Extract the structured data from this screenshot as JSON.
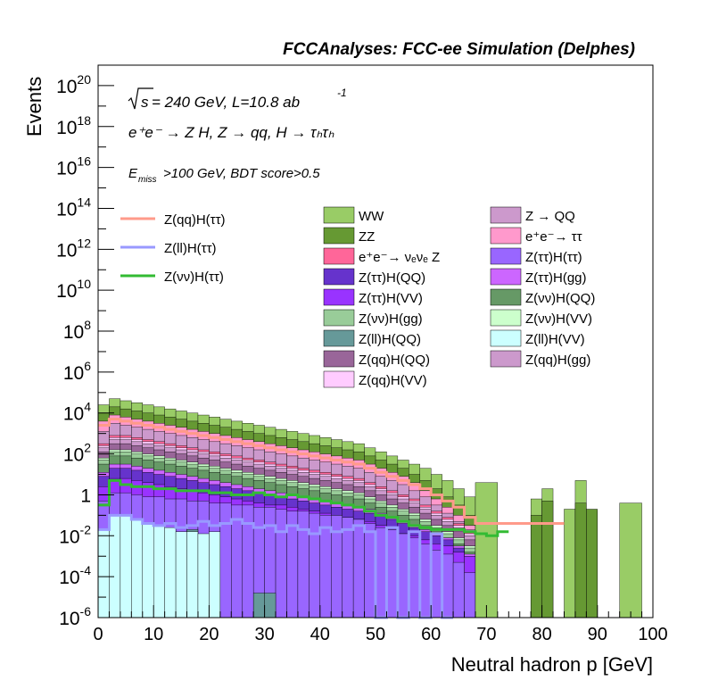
{
  "chart_data": {
    "type": "histogram-stacked",
    "title": "FCCAnalyses: FCC-ee Simulation (Delphes)",
    "xlabel": "Neutral hadron p [GeV]",
    "ylabel": "Events",
    "xlim": [
      0,
      100
    ],
    "ylim": [
      1e-06,
      1e+21
    ],
    "y_log": true,
    "grid": false,
    "x_ticks": [
      "0",
      "10",
      "20",
      "30",
      "40",
      "50",
      "60",
      "70",
      "80",
      "90",
      "100"
    ],
    "y_ticks": [
      {
        "base": "10",
        "exp": "-6"
      },
      {
        "base": "10",
        "exp": "-4"
      },
      {
        "base": "10",
        "exp": "-2"
      },
      {
        "base": "1",
        "exp": ""
      },
      {
        "base": "10",
        "exp": "2"
      },
      {
        "base": "10",
        "exp": "4"
      },
      {
        "base": "10",
        "exp": "6"
      },
      {
        "base": "10",
        "exp": "8"
      },
      {
        "base": "10",
        "exp": "10"
      },
      {
        "base": "10",
        "exp": "12"
      },
      {
        "base": "10",
        "exp": "14"
      },
      {
        "base": "10",
        "exp": "16"
      },
      {
        "base": "10",
        "exp": "18"
      },
      {
        "base": "10",
        "exp": "20"
      }
    ],
    "annotations": {
      "energy_sqrt": "s",
      "energy_rest": " = 240 GeV, L=10.8 ab",
      "energy_exp": "-1",
      "process": "e⁺e⁻ → Z H, Z → qq, H → τₕτₕ",
      "cut_e": "E",
      "cut_sub": "miss",
      "cut_rest": ">100 GeV, BDT score>0.5"
    },
    "bin_edges_start": 0,
    "bin_width": 2,
    "signal_legend": [
      {
        "label": "Z(qq)H(ττ)",
        "color": "#ff9a8a"
      },
      {
        "label": "Z(ll)H(ττ)",
        "color": "#9999ff"
      },
      {
        "label": "Z(νν)H(ττ)",
        "color": "#33bb33"
      }
    ],
    "backgrounds_legend": [
      {
        "label": "WW",
        "color": "#99cc66"
      },
      {
        "label": "Z → QQ",
        "color": "#cc99cc"
      },
      {
        "label": "ZZ",
        "color": "#669933"
      },
      {
        "label": "e⁺e⁻→ ττ",
        "color": "#ff99cc"
      },
      {
        "label": "e⁺e⁻→ νₑνₑ Z",
        "color": "#ff6699"
      },
      {
        "label": "Z(ττ)H(ττ)",
        "color": "#9966ff"
      },
      {
        "label": "Z(ττ)H(QQ)",
        "color": "#6633cc"
      },
      {
        "label": "Z(ττ)H(gg)",
        "color": "#cc66ff"
      },
      {
        "label": "Z(ττ)H(VV)",
        "color": "#9933ff"
      },
      {
        "label": "Z(νν)H(QQ)",
        "color": "#669966"
      },
      {
        "label": "Z(νν)H(gg)",
        "color": "#99cc99"
      },
      {
        "label": "Z(νν)H(VV)",
        "color": "#ccffcc"
      },
      {
        "label": "Z(ll)H(QQ)",
        "color": "#669999"
      },
      {
        "label": "Z(ll)H(VV)",
        "color": "#ccffff"
      },
      {
        "label": "Z(qq)H(QQ)",
        "color": "#996699"
      },
      {
        "label": "Z(qq)H(gg)",
        "color": "#cc99cc"
      },
      {
        "label": "Z(qq)H(VV)",
        "color": "#ffccff"
      }
    ],
    "stack_order_bottom_to_top": [
      "Z(ll)H(VV)",
      "Z(ll)H(QQ)",
      "Z(ττ)H(ττ)",
      "Z(ττ)H(VV)",
      "Z(ττ)H(QQ)",
      "Z(ττ)H(gg)",
      "Z(νν)H(QQ)",
      "Z(νν)H(gg)",
      "Z(νν)H(VV)",
      "Z(qq)H(QQ)",
      "Z(qq)H(gg)",
      "Z(qq)H(VV)",
      "e⁺e⁻→ νₑνₑ Z",
      "Z → QQ",
      "e⁺e⁻→ ττ",
      "ZZ",
      "WW"
    ],
    "stack_layers": [
      {
        "name": "Z(ll)H(VV)",
        "color": "#ccffff",
        "log10": [
          -1.7,
          -1.0,
          -1.0,
          -1.2,
          -1.4,
          -1.5,
          -1.6,
          -1.8,
          -1.8,
          -1.9,
          -1.8
        ]
      },
      {
        "name": "Z(ll)H(QQ)",
        "color": "#669999",
        "log10": [
          -5.0,
          -5.0,
          -5.0,
          -5.0,
          -5.0,
          -1.8,
          -6.0,
          -1.8,
          -1.7,
          -6.0,
          -6.0,
          -6.0,
          -6.0,
          -6.0,
          -4.8,
          -4.8,
          -6.0
        ]
      },
      {
        "name": "Z(ττ)H(ττ)",
        "color": "#9966ff",
        "log10": [
          -0.3,
          0.1,
          0.1,
          0.0,
          -0.1,
          -0.1,
          -0.2,
          -0.2,
          -0.3,
          -0.3,
          -0.4,
          -0.4,
          -0.5,
          -0.5,
          -0.6,
          -0.6,
          -0.7,
          -0.8,
          -0.8,
          -0.9,
          -1.0,
          -1.0,
          -1.1,
          -1.2,
          -1.4,
          -1.6,
          -1.7,
          -1.9,
          -2.1,
          -2.4,
          -2.7,
          -2.9,
          -3.3,
          -3.8
        ]
      },
      {
        "name": "Z(ττ)H(VV)",
        "color": "#9933ff",
        "log10": [
          0.4,
          0.8,
          0.8,
          0.7,
          0.6,
          0.5,
          0.4,
          0.3,
          0.2,
          0.1,
          0.0,
          -0.1,
          -0.2,
          -0.3,
          -0.4,
          -0.5,
          -0.5,
          -0.6,
          -0.7,
          -0.8,
          -0.9,
          -1.0,
          -1.1,
          -1.2,
          -1.3,
          -1.5,
          -1.7,
          -1.9,
          -2.0,
          -2.2,
          -2.4,
          -2.5,
          -2.8,
          -3.0
        ]
      },
      {
        "name": "Z(ττ)H(QQ)",
        "color": "#6633cc",
        "log10": [
          0.9,
          1.3,
          1.3,
          1.2,
          1.1,
          1.0,
          0.9,
          0.8,
          0.7,
          0.6,
          0.5,
          0.4,
          0.3,
          0.2,
          0.1,
          0.0,
          -0.1,
          -0.2,
          -0.3,
          -0.4,
          -0.5,
          -0.6,
          -0.7,
          -0.8,
          -0.9,
          -1.0,
          -1.2,
          -1.4,
          -1.6,
          -1.8,
          -2.0,
          -2.2,
          -2.6,
          -3.0
        ]
      },
      {
        "name": "Z(ττ)H(gg)",
        "color": "#cc66ff",
        "log10": [
          1.1,
          1.5,
          1.5,
          1.4,
          1.3,
          1.2,
          1.1,
          1.0,
          0.9,
          0.8,
          0.7,
          0.6,
          0.5,
          0.4,
          0.3,
          0.2,
          0.1,
          0.0,
          -0.1,
          -0.2,
          -0.3,
          -0.4,
          -0.5,
          -0.6,
          -0.7,
          -0.9,
          -1.1,
          -1.3,
          -1.5,
          -1.7,
          -1.9,
          -2.1,
          -2.5,
          -2.9
        ]
      },
      {
        "name": "Z(νν)H(QQ)",
        "color": "#669966",
        "log10": [
          1.5,
          1.9,
          1.9,
          1.8,
          1.7,
          1.6,
          1.5,
          1.4,
          1.3,
          1.2,
          1.1,
          1.0,
          0.9,
          0.8,
          0.7,
          0.6,
          0.5,
          0.4,
          0.3,
          0.2,
          0.1,
          0.0,
          -0.1,
          -0.2,
          -0.4,
          -0.6,
          -0.8,
          -1.0,
          -1.2,
          -1.5,
          -1.8,
          -2.1,
          -2.4,
          -2.8
        ]
      },
      {
        "name": "Z(νν)H(gg)",
        "color": "#99cc99",
        "log10": [
          1.7,
          2.1,
          2.1,
          2.0,
          1.9,
          1.8,
          1.7,
          1.6,
          1.5,
          1.4,
          1.3,
          1.2,
          1.1,
          1.0,
          0.9,
          0.8,
          0.7,
          0.6,
          0.5,
          0.4,
          0.3,
          0.2,
          0.1,
          0.0,
          -0.2,
          -0.4,
          -0.6,
          -0.8,
          -1.0,
          -1.3,
          -1.6,
          -1.9,
          -2.2,
          -2.6
        ]
      },
      {
        "name": "Z(νν)H(VV)",
        "color": "#ccffcc",
        "log10": [
          1.8,
          2.2,
          2.2,
          2.1,
          2.0,
          1.9,
          1.8,
          1.7,
          1.6,
          1.5,
          1.4,
          1.3,
          1.2,
          1.1,
          1.0,
          0.9,
          0.8,
          0.7,
          0.6,
          0.5,
          0.4,
          0.3,
          0.2,
          0.1,
          -0.1,
          -0.3,
          -0.5,
          -0.7,
          -0.9,
          -1.2,
          -1.5,
          -1.8,
          -2.1,
          -2.5
        ]
      },
      {
        "name": "Z(qq)H(QQ)",
        "color": "#996699",
        "log10": [
          2.1,
          2.5,
          2.5,
          2.4,
          2.3,
          2.2,
          2.1,
          2.0,
          1.9,
          1.8,
          1.7,
          1.6,
          1.5,
          1.4,
          1.3,
          1.2,
          1.1,
          1.0,
          0.9,
          0.8,
          0.7,
          0.6,
          0.5,
          0.4,
          0.2,
          0.0,
          -0.2,
          -0.4,
          -0.6,
          -0.9,
          -1.2,
          -1.5,
          -1.8,
          -2.2
        ]
      },
      {
        "name": "Z(qq)H(gg)",
        "color": "#cc99cc",
        "log10": [
          2.3,
          2.7,
          2.7,
          2.6,
          2.5,
          2.4,
          2.3,
          2.2,
          2.1,
          2.0,
          1.9,
          1.8,
          1.7,
          1.6,
          1.5,
          1.4,
          1.3,
          1.2,
          1.1,
          1.0,
          0.9,
          0.8,
          0.7,
          0.6,
          0.4,
          0.2,
          0.0,
          -0.2,
          -0.4,
          -0.7,
          -1.0,
          -1.3,
          -1.6,
          -2.0
        ]
      },
      {
        "name": "Z(qq)H(VV)",
        "color": "#ffccff",
        "log10": [
          2.4,
          2.8,
          2.8,
          2.7,
          2.6,
          2.5,
          2.4,
          2.3,
          2.2,
          2.1,
          2.0,
          1.9,
          1.8,
          1.7,
          1.6,
          1.5,
          1.4,
          1.3,
          1.2,
          1.1,
          1.0,
          0.9,
          0.8,
          0.7,
          0.5,
          0.3,
          0.1,
          -0.1,
          -0.3,
          -0.6,
          -0.9,
          -1.2,
          -1.5,
          -1.9
        ]
      },
      {
        "name": "e⁺e⁻→ νₑνₑ Z",
        "color": "#ff6699",
        "log10": [
          2.5,
          2.9,
          2.9,
          2.8,
          2.7,
          2.6,
          2.5,
          2.4,
          2.3,
          2.2,
          2.1,
          2.0,
          1.9,
          1.8,
          1.7,
          1.6,
          1.5,
          1.4,
          1.3,
          1.2,
          1.1,
          1.0,
          0.9,
          0.8,
          0.6,
          0.4,
          0.2,
          0.0,
          -0.2,
          -0.5,
          -0.8,
          -1.1,
          -1.4,
          -1.8
        ]
      },
      {
        "name": "Z → QQ",
        "color": "#cc99cc",
        "log10": [
          3.1,
          3.5,
          3.4,
          3.3,
          3.2,
          3.1,
          3.0,
          2.9,
          2.8,
          2.7,
          2.6,
          2.5,
          2.4,
          2.3,
          2.2,
          2.1,
          2.0,
          1.9,
          1.8,
          1.7,
          1.6,
          1.5,
          1.4,
          1.3,
          1.1,
          0.9,
          0.7,
          0.5,
          0.2,
          -0.1,
          -0.5,
          -0.9,
          -1.3,
          -1.7
        ]
      },
      {
        "name": "e⁺e⁻→ ττ",
        "color": "#ff99cc",
        "log10": [
          3.6,
          3.9,
          3.8,
          3.7,
          3.6,
          3.5,
          3.4,
          3.3,
          3.2,
          3.1,
          3.0,
          2.9,
          2.8,
          2.7,
          2.6,
          2.5,
          2.4,
          2.3,
          2.2,
          2.1,
          2.0,
          1.9,
          1.8,
          1.7,
          1.5,
          1.3,
          1.1,
          0.9,
          0.6,
          0.2,
          -0.2,
          -0.6,
          -1.0,
          -1.5
        ]
      },
      {
        "name": "ZZ",
        "color": "#669933",
        "log10": [
          4.0,
          4.3,
          4.2,
          4.1,
          4.0,
          3.9,
          3.8,
          3.7,
          3.6,
          3.5,
          3.4,
          3.3,
          3.2,
          3.1,
          3.0,
          2.9,
          2.8,
          2.7,
          2.6,
          2.5,
          2.4,
          2.3,
          2.2,
          2.1,
          1.9,
          1.7,
          1.5,
          1.3,
          1.0,
          0.7,
          0.3,
          -0.1,
          -0.5,
          -1.0
        ]
      },
      {
        "name": "WW",
        "color": "#99cc66",
        "log10": [
          4.4,
          4.7,
          4.6,
          4.5,
          4.4,
          4.3,
          4.2,
          4.1,
          4.0,
          3.9,
          3.8,
          3.7,
          3.6,
          3.5,
          3.4,
          3.3,
          3.2,
          3.1,
          3.0,
          2.9,
          2.8,
          2.7,
          2.6,
          2.5,
          2.3,
          2.1,
          1.9,
          1.7,
          1.5,
          1.3,
          1.0,
          0.7,
          0.3,
          -0.1
        ]
      }
    ],
    "ww_tail_bins": [
      {
        "x0": 68,
        "x1": 72,
        "log10": 0.6
      },
      {
        "x0": 78,
        "x1": 80,
        "log10": -0.2
      },
      {
        "x0": 80,
        "x1": 82,
        "log10": 0.3
      },
      {
        "x0": 84,
        "x1": 86,
        "log10": -0.7
      },
      {
        "x0": 86,
        "x1": 88,
        "log10": 0.7
      },
      {
        "x0": 88,
        "x1": 90,
        "log10": -0.8
      },
      {
        "x0": 94,
        "x1": 98,
        "log10": -0.4
      }
    ],
    "zz_tail_bins": [
      {
        "x0": 78,
        "x1": 80,
        "log10": -1.0
      },
      {
        "x0": 80,
        "x1": 82,
        "log10": -0.3
      },
      {
        "x0": 86,
        "x1": 88,
        "log10": -0.4
      },
      {
        "x0": 88,
        "x1": 90,
        "log10": -0.7
      }
    ],
    "signal_lines": [
      {
        "name": "Z(qq)H(ττ)",
        "color": "#ff9a8a",
        "log10": [
          3.4,
          3.7,
          3.6,
          3.5,
          3.4,
          3.3,
          3.2,
          3.1,
          3.0,
          2.9,
          2.8,
          2.7,
          2.6,
          2.5,
          2.4,
          2.3,
          2.2,
          2.1,
          2.0,
          1.9,
          1.8,
          1.7,
          1.6,
          1.5,
          1.3,
          1.1,
          0.9,
          0.7,
          0.5,
          0.3,
          0.0,
          -0.3,
          -0.6,
          -1.1,
          -1.4,
          -1.4,
          -1.4,
          -1.4,
          -1.4,
          -1.4,
          -1.4,
          -1.4
        ]
      },
      {
        "name": "Z(νν)H(ττ)",
        "color": "#33bb33",
        "log10": [
          -0.5,
          0.7,
          0.5,
          0.4,
          0.4,
          0.3,
          0.3,
          0.2,
          0.2,
          0.2,
          0.1,
          0.1,
          0.0,
          0.0,
          0.1,
          0.0,
          -0.1,
          0.0,
          -0.1,
          -0.2,
          -0.3,
          -0.4,
          -0.5,
          -0.6,
          -0.8,
          -1.0,
          -1.1,
          -1.3,
          -1.5,
          -1.6,
          -1.7,
          -1.7,
          -1.7,
          -1.8,
          -1.9,
          -2.0,
          -1.8
        ]
      },
      {
        "name": "Z(ll)H(ττ)",
        "color": "#9999ff",
        "log10": [
          -1.7,
          -1.0,
          -1.0,
          -1.2,
          -1.4,
          -1.5,
          -1.4,
          -1.6,
          -1.5,
          -1.3,
          -1.5,
          -1.4,
          -1.2,
          -1.4,
          -1.6,
          -1.5,
          -1.8,
          -1.5,
          -1.7,
          -1.9,
          -1.6,
          -1.8,
          -1.7,
          -1.5,
          -1.8,
          -6.0,
          -1.6,
          -6.0,
          -1.8,
          -6.0,
          -1.9,
          -6.0
        ]
      }
    ]
  }
}
